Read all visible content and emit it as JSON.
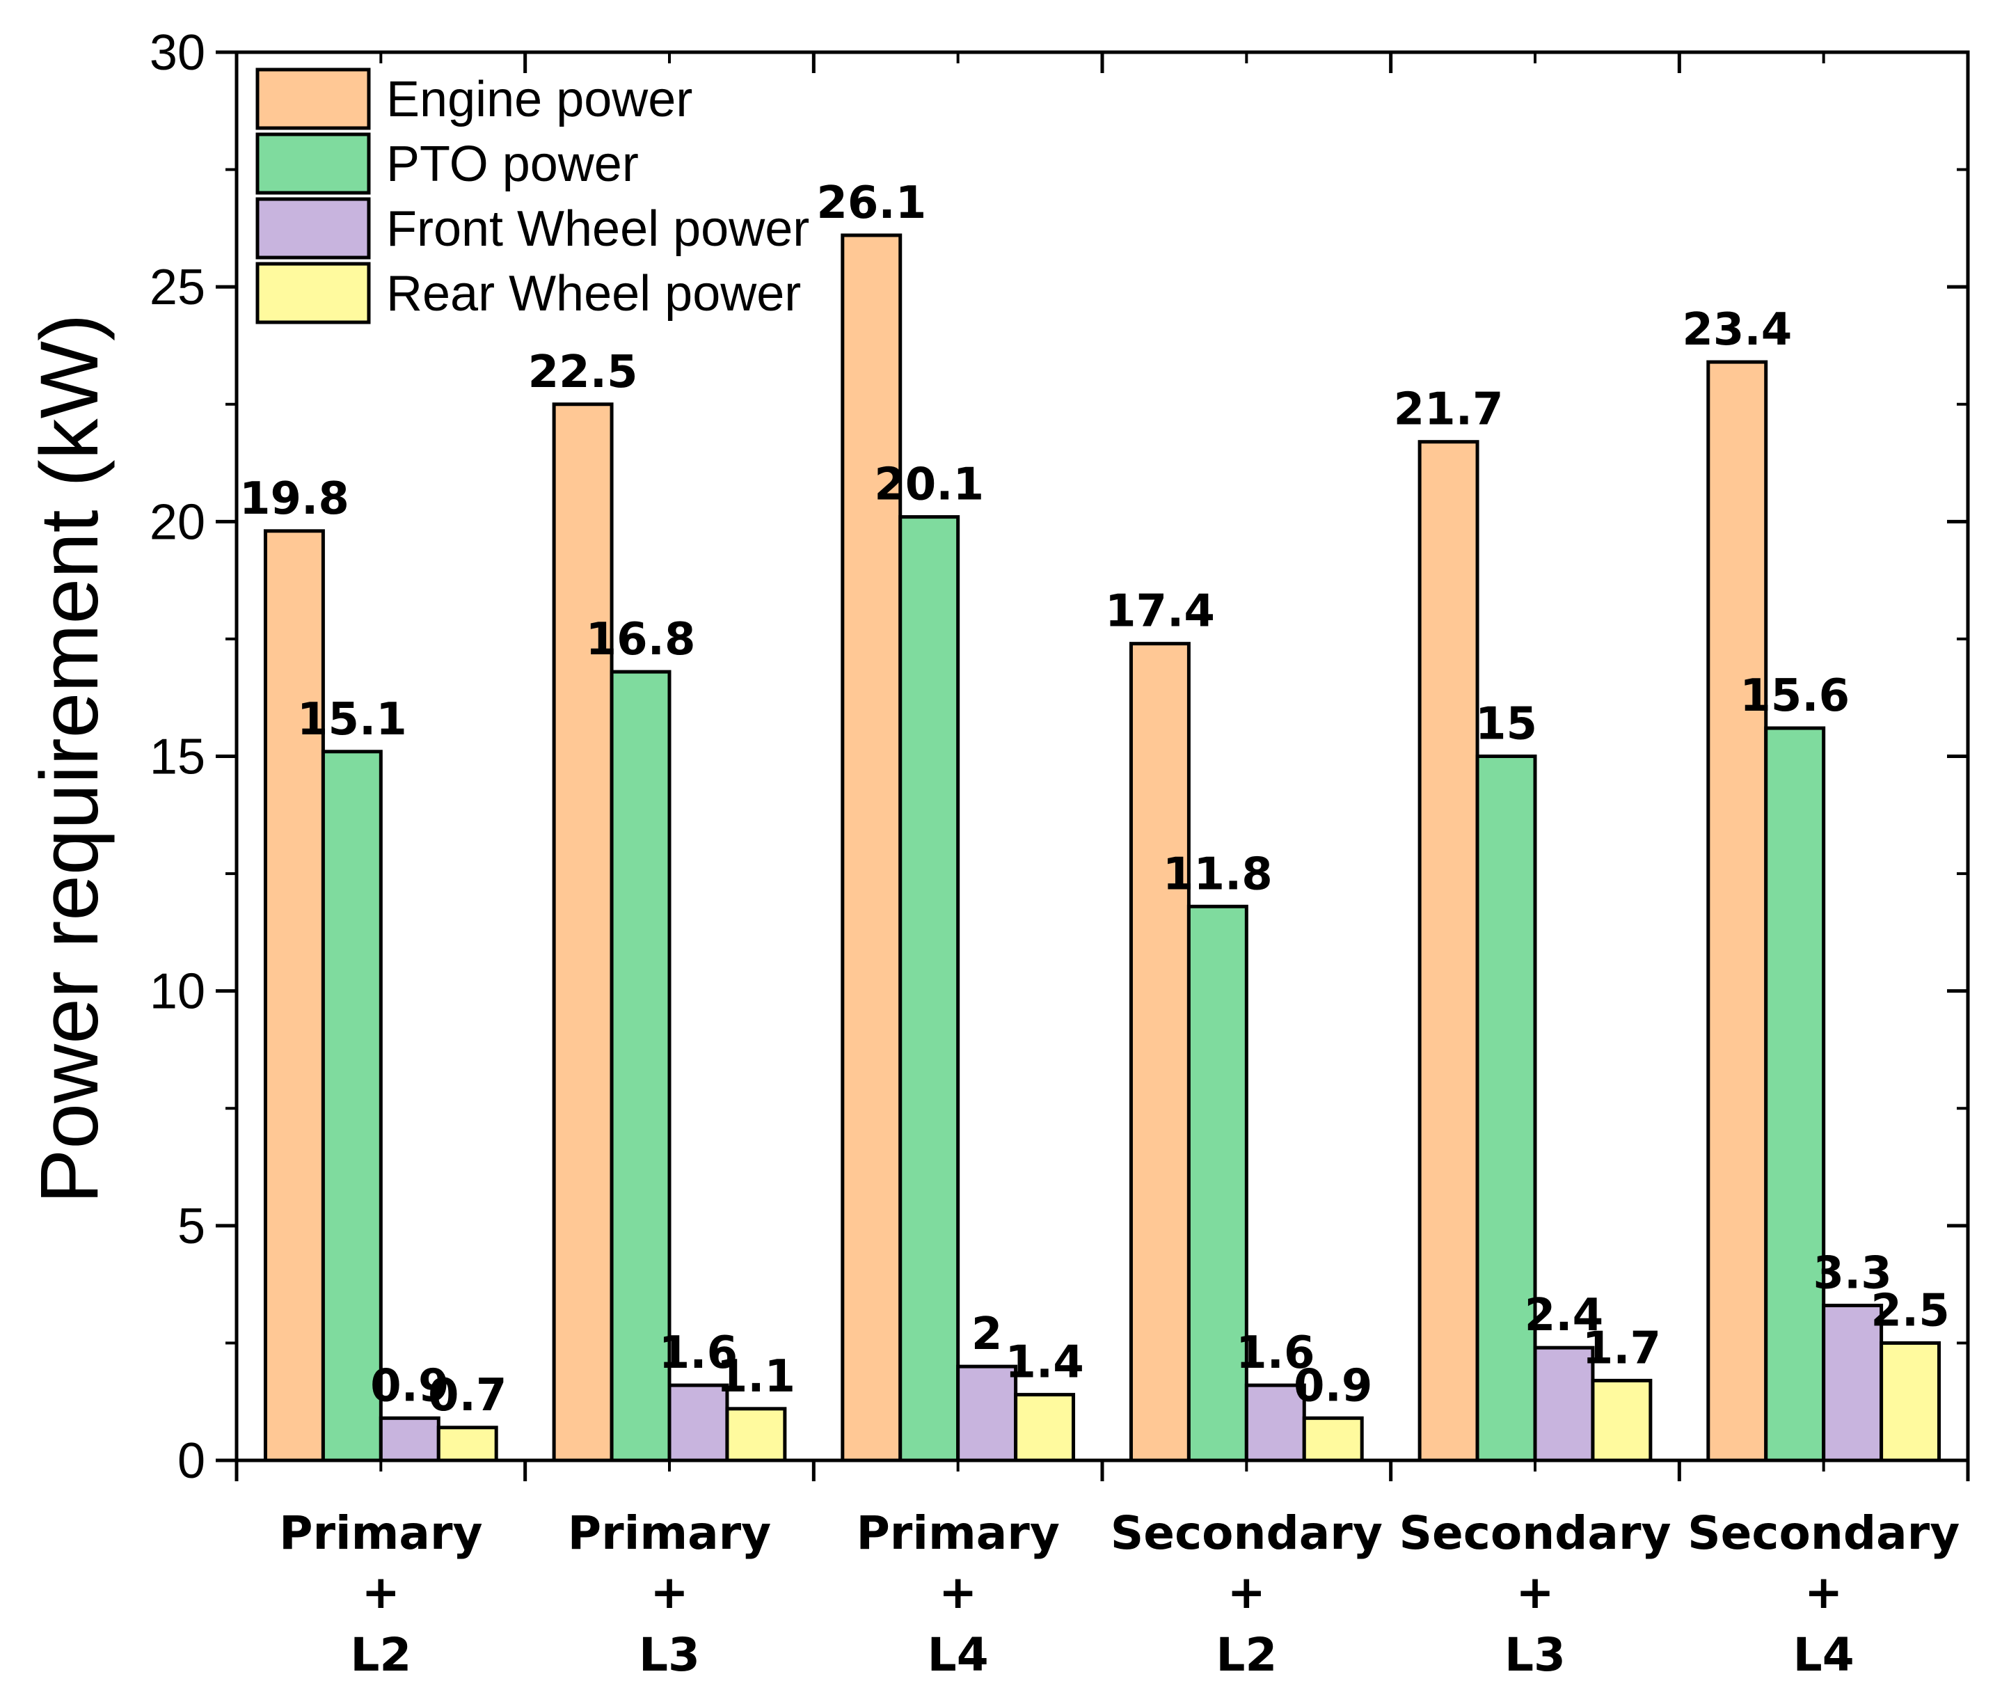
{
  "chart_data": {
    "type": "bar",
    "title": "",
    "xlabel": "",
    "ylabel": "Power requirement (kW)",
    "ylim": [
      0,
      30
    ],
    "yticks": [
      0,
      5,
      10,
      15,
      20,
      25,
      30
    ],
    "categories": [
      [
        "Primary",
        "+",
        "L2"
      ],
      [
        "Primary",
        "+",
        "L3"
      ],
      [
        "Primary",
        "+",
        "L4"
      ],
      [
        "Secondary",
        "+",
        "L2"
      ],
      [
        "Secondary",
        "+",
        "L3"
      ],
      [
        "Secondary",
        "+",
        "L4"
      ]
    ],
    "series": [
      {
        "name": "Engine power",
        "color": "#FFC895",
        "values": [
          19.8,
          22.5,
          26.1,
          17.4,
          21.7,
          23.4
        ],
        "labels": [
          "19.8",
          "22.5",
          "26.1",
          "17.4",
          "21.7",
          "23.4"
        ]
      },
      {
        "name": "PTO power",
        "color": "#7FDB9E",
        "values": [
          15.1,
          16.8,
          20.1,
          11.8,
          15,
          15.6
        ],
        "labels": [
          "15.1",
          "16.8",
          "20.1",
          "11.8",
          "15",
          "15.6"
        ]
      },
      {
        "name": "Front Wheel power",
        "color": "#C8B4DE",
        "values": [
          0.9,
          1.6,
          2,
          1.6,
          2.4,
          3.3
        ],
        "labels": [
          "0.9",
          "1.6",
          "2",
          "1.6",
          "2.4",
          "3.3"
        ]
      },
      {
        "name": "Rear Wheel power",
        "color": "#FFFA9E",
        "values": [
          0.7,
          1.1,
          1.4,
          0.9,
          1.7,
          2.5
        ],
        "labels": [
          "0.7",
          "1.1",
          "1.4",
          "0.9",
          "1.7",
          "2.5"
        ]
      }
    ],
    "legend_position": "top-left",
    "grid": false
  }
}
